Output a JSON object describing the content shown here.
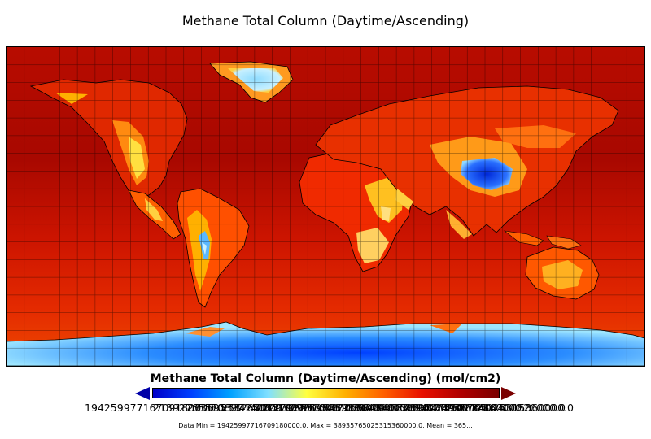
{
  "title": "Methane Total Column (Daytime/Ascending)",
  "colorbar": {
    "label": "Methane Total Column (Daytime/Ascending) (mol/cm2)",
    "ticks": [
      "19425997716709180000.0",
      "21392765570897140000.0",
      "23359533425085100000.0",
      "25326301279273060000.0",
      "27293069133461020000.0",
      "29259836987648980000.0",
      "31226604841836940000.0",
      "33193372696024900000.0",
      "35160140550212860000.0",
      "37126908404400820000.0",
      "38935765025315360000.0"
    ],
    "colors": {
      "under": "#0000a8",
      "over": "#7a0000",
      "stops": [
        "#0000c8",
        "#0040ff",
        "#00a0ff",
        "#80e0ff",
        "#ffff40",
        "#ffb000",
        "#ff6000",
        "#e81000",
        "#b00000",
        "#7a0000"
      ]
    }
  },
  "stats_text": "Data Min = 19425997716709180000.0, Max = 38935765025315360000.0, Mean = 365...",
  "map": {
    "ocean_color": "#cc1a00",
    "grid": "10-degree lat/lon graticule",
    "regions": {
      "north_america": "north-america",
      "south_america": "south-america",
      "greenland": "greenland",
      "africa": "africa",
      "eurasia": "eurasia",
      "tibet_low": "tibetan-plateau-low",
      "australia": "australia",
      "antarctica": "antarctica"
    }
  }
}
